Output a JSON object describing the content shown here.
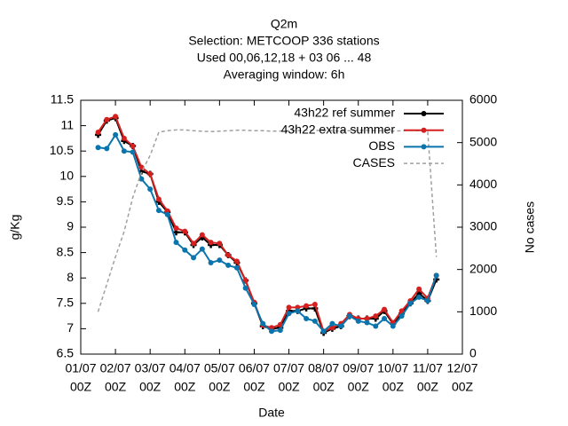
{
  "chart_data": {
    "type": "line",
    "title": [
      "Q2m",
      "Selection: METCOOP    336 stations",
      "Used  00,06,12,18  + 03 06 ... 48",
      "Averaging window:  6h"
    ],
    "xlabel": "Date",
    "ylabel": "g/Kg",
    "y2label": "No cases",
    "x": [
      12,
      18,
      24,
      30,
      36,
      42,
      48,
      54,
      60,
      66,
      72,
      78,
      84,
      90,
      96,
      102,
      108,
      114,
      120,
      126,
      132,
      138,
      144,
      150,
      156,
      162,
      168,
      174,
      180,
      186,
      192,
      198,
      204,
      210,
      216,
      222,
      228,
      234,
      240,
      246
    ],
    "xlim": [
      0,
      264
    ],
    "xticks": [
      {
        "value": 0,
        "label": "01/07"
      },
      {
        "value": 24,
        "label": "02/07"
      },
      {
        "value": 48,
        "label": "03/07"
      },
      {
        "value": 72,
        "label": "04/07"
      },
      {
        "value": 96,
        "label": "05/07"
      },
      {
        "value": 120,
        "label": "06/07"
      },
      {
        "value": 144,
        "label": "07/07"
      },
      {
        "value": 168,
        "label": "08/07"
      },
      {
        "value": 192,
        "label": "09/07"
      },
      {
        "value": 216,
        "label": "10/07"
      },
      {
        "value": 240,
        "label": "11/07"
      },
      {
        "value": 264,
        "label": "12/07"
      }
    ],
    "xtick_hours": [
      "00Z",
      "00Z",
      "00Z",
      "00Z",
      "00Z",
      "00Z",
      "00Z",
      "00Z",
      "00Z",
      "00Z",
      "00Z",
      "00Z"
    ],
    "ylim": [
      6.5,
      11.5
    ],
    "yticks": [
      6.5,
      7,
      7.5,
      8,
      8.5,
      9,
      9.5,
      10,
      10.5,
      11,
      11.5
    ],
    "y2lim": [
      0,
      6000
    ],
    "y2ticks": [
      0,
      1000,
      2000,
      3000,
      4000,
      5000,
      6000
    ],
    "grid": false,
    "legend": "top-right",
    "series": [
      {
        "name": "43h22 ref summer",
        "color": "#000000",
        "marker": "plus",
        "values": [
          10.82,
          11.1,
          11.15,
          10.7,
          10.6,
          10.1,
          10.05,
          9.5,
          9.3,
          8.9,
          8.9,
          8.65,
          8.8,
          8.65,
          8.65,
          8.45,
          8.3,
          7.95,
          7.5,
          7.05,
          7.0,
          7.02,
          7.35,
          7.35,
          7.4,
          7.4,
          6.92,
          7.0,
          7.05,
          7.25,
          7.2,
          7.2,
          7.2,
          7.35,
          7.1,
          7.3,
          7.5,
          7.7,
          7.55,
          7.97
        ]
      },
      {
        "name": "43h22 extra summer",
        "color": "#d62020",
        "marker": "circle",
        "values": [
          10.87,
          11.12,
          11.18,
          10.75,
          10.6,
          10.18,
          10.05,
          9.55,
          9.32,
          8.98,
          8.92,
          8.68,
          8.85,
          8.7,
          8.68,
          8.45,
          8.33,
          7.95,
          7.52,
          7.07,
          7.02,
          7.08,
          7.42,
          7.42,
          7.45,
          7.48,
          6.95,
          7.02,
          7.1,
          7.28,
          7.2,
          7.2,
          7.25,
          7.38,
          7.12,
          7.35,
          7.55,
          7.78,
          7.6,
          8.05
        ]
      },
      {
        "name": "OBS",
        "color": "#0a75ad",
        "marker": "circle",
        "values": [
          10.57,
          10.55,
          10.82,
          10.5,
          10.48,
          9.95,
          9.75,
          9.33,
          9.25,
          8.7,
          8.55,
          8.4,
          8.57,
          8.3,
          8.35,
          8.25,
          8.2,
          7.8,
          7.48,
          7.1,
          6.95,
          6.97,
          7.3,
          7.35,
          7.2,
          7.15,
          6.95,
          7.1,
          7.05,
          7.25,
          7.15,
          7.12,
          7.05,
          7.2,
          7.05,
          7.25,
          7.5,
          7.62,
          7.55,
          8.05
        ]
      },
      {
        "name": "CASES",
        "color": "#a0a0a0",
        "dashed": true,
        "axis": "y2",
        "values": [
          1000,
          1650,
          2300,
          2900,
          3700,
          4300,
          4700,
          5250,
          5280,
          5300,
          5300,
          5280,
          5270,
          5260,
          5270,
          5280,
          5290,
          5290,
          5280,
          5280,
          5270,
          5270,
          5280,
          5280,
          5290,
          5290,
          5280,
          5280,
          5270,
          5280,
          5290,
          5290,
          5280,
          5280,
          5270,
          5280,
          5290,
          5280,
          5270,
          2300
        ]
      }
    ]
  }
}
